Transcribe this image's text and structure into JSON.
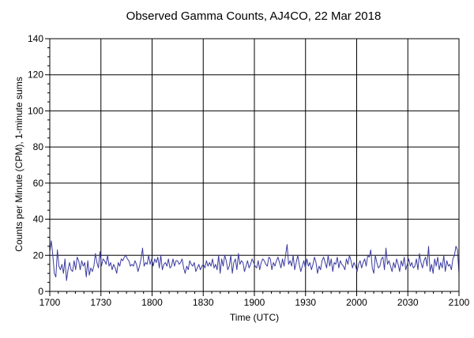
{
  "chart_data": {
    "type": "line",
    "title": "Observed Gamma Counts, AJ4CO, 22 Mar 2018",
    "xlabel": "Time (UTC)",
    "ylabel": "Counts per Minute (CPM), 1-minute sums",
    "xlim": [
      "1700",
      "2100"
    ],
    "ylim": [
      0,
      140
    ],
    "x_ticks": [
      "1700",
      "1730",
      "1800",
      "1830",
      "1900",
      "1930",
      "2000",
      "2030",
      "2100"
    ],
    "y_ticks": [
      0,
      20,
      40,
      60,
      80,
      100,
      120,
      140
    ],
    "grid": true,
    "x_unit": "minutes starting at 1700 UTC",
    "series": [
      {
        "color": "#3a3aa0",
        "values": [
          22,
          28,
          20,
          10,
          8,
          23,
          14,
          12,
          15,
          10,
          18,
          6,
          12,
          16,
          12,
          11,
          17,
          12,
          19,
          17,
          12,
          17,
          14,
          16,
          8,
          17,
          9,
          13,
          11,
          14,
          21,
          16,
          13,
          22,
          14,
          18,
          17,
          15,
          20,
          14,
          16,
          12,
          15,
          13,
          10,
          16,
          14,
          18,
          17,
          19,
          20,
          18,
          17,
          14,
          15,
          14,
          17,
          15,
          11,
          14,
          18,
          24,
          14,
          16,
          15,
          20,
          15,
          18,
          14,
          18,
          16,
          19,
          13,
          20,
          12,
          15,
          16,
          14,
          18,
          13,
          14,
          18,
          14,
          17,
          17,
          15,
          16,
          18,
          13,
          10,
          14,
          12,
          17,
          15,
          14,
          16,
          11,
          13,
          15,
          12,
          14,
          15,
          13,
          17,
          14,
          16,
          14,
          18,
          13,
          15,
          12,
          20,
          10,
          18,
          14,
          20,
          17,
          12,
          14,
          20,
          10,
          16,
          18,
          12,
          21,
          15,
          17,
          16,
          11,
          14,
          17,
          13,
          15,
          18,
          16,
          14,
          13,
          17,
          12,
          16,
          18,
          17,
          15,
          14,
          19,
          18,
          12,
          16,
          14,
          17,
          19,
          16,
          13,
          18,
          14,
          20,
          26,
          15,
          17,
          14,
          20,
          12,
          16,
          20,
          15,
          11,
          14,
          17,
          13,
          18,
          14,
          16,
          12,
          15,
          19,
          16,
          10,
          14,
          12,
          17,
          19,
          16,
          13,
          20,
          14,
          18,
          11,
          16,
          15,
          19,
          13,
          17,
          15,
          14,
          12,
          18,
          15,
          20,
          17,
          13,
          16,
          14,
          11,
          15,
          17,
          13,
          16,
          18,
          14,
          20,
          19,
          23,
          13,
          10,
          20,
          16,
          13,
          14,
          18,
          19,
          12,
          24,
          15,
          17,
          14,
          11,
          16,
          13,
          18,
          15,
          11,
          17,
          14,
          19,
          12,
          15,
          18,
          14,
          16,
          13,
          14,
          18,
          12,
          21,
          16,
          13,
          17,
          19,
          14,
          25,
          11,
          15,
          10,
          18,
          14,
          19,
          12,
          16,
          13,
          20,
          11,
          17,
          14,
          15,
          12,
          18,
          20,
          25,
          23,
          10
        ]
      }
    ]
  }
}
